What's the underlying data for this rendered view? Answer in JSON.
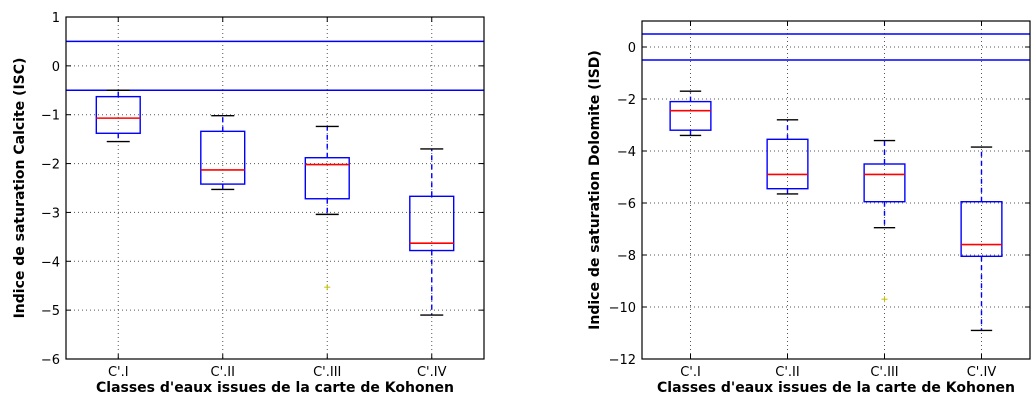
{
  "chart_data": [
    {
      "type": "box",
      "title": "",
      "xlabel": "Classes d'eaux issues de la carte de Kohonen",
      "ylabel": "Indice de saturation Calcite (ISC)",
      "ylim": [
        -6,
        1
      ],
      "yticks": [
        1,
        0,
        -1,
        -2,
        -3,
        -4,
        -5,
        -6
      ],
      "ytick_labels": [
        "1",
        "0",
        "−1",
        "−2",
        "−3",
        "−4",
        "−5",
        "−6"
      ],
      "grid": true,
      "reference_lines": [
        0.5,
        -0.5
      ],
      "categories": [
        "C'.I",
        "C'.II",
        "C'.III",
        "C'.IV"
      ],
      "boxes": [
        {
          "whisker_low": -1.55,
          "q1": -1.38,
          "median": -1.07,
          "q3": -0.63,
          "whisker_high": -0.5,
          "outliers": []
        },
        {
          "whisker_low": -2.53,
          "q1": -2.42,
          "median": -2.13,
          "q3": -1.34,
          "whisker_high": -1.02,
          "outliers": []
        },
        {
          "whisker_low": -3.04,
          "q1": -2.72,
          "median": -2.02,
          "q3": -1.88,
          "whisker_high": -1.24,
          "outliers": [
            -4.53
          ]
        },
        {
          "whisker_low": -5.1,
          "q1": -3.78,
          "median": -3.63,
          "q3": -2.67,
          "whisker_high": -1.7,
          "outliers": []
        }
      ]
    },
    {
      "type": "box",
      "title": "",
      "xlabel": "Classes d'eaux issues de la carte de Kohonen",
      "ylabel": "Indice de saturation Dolomite (ISD)",
      "ylim": [
        -12,
        1
      ],
      "yticks": [
        0,
        -2,
        -4,
        -6,
        -8,
        -10,
        -12
      ],
      "ytick_labels": [
        "0",
        "−2",
        "−4",
        "−6",
        "−8",
        "−10",
        "−12"
      ],
      "grid": true,
      "reference_lines": [
        0.5,
        -0.5
      ],
      "categories": [
        "C'.I",
        "C'.II",
        "C'.III",
        "C'.IV"
      ],
      "boxes": [
        {
          "whisker_low": -3.4,
          "q1": -3.2,
          "median": -2.45,
          "q3": -2.1,
          "whisker_high": -1.7,
          "outliers": []
        },
        {
          "whisker_low": -5.65,
          "q1": -5.45,
          "median": -4.9,
          "q3": -3.55,
          "whisker_high": -2.8,
          "outliers": []
        },
        {
          "whisker_low": -6.95,
          "q1": -5.95,
          "median": -4.9,
          "q3": -4.5,
          "whisker_high": -3.6,
          "outliers": [
            -9.7
          ]
        },
        {
          "whisker_low": -10.9,
          "q1": -8.05,
          "median": -7.6,
          "q3": -5.95,
          "whisker_high": -3.85,
          "outliers": []
        }
      ]
    }
  ],
  "colors": {
    "box": "#0000ff",
    "median": "#ff0000",
    "whisker_cap": "#000000",
    "reference_line": "#0000ff",
    "outlier": "#bfbf00",
    "grid": "#555555"
  }
}
